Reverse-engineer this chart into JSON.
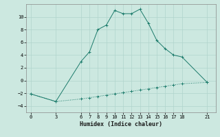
{
  "title": "",
  "xlabel": "Humidex (Indice chaleur)",
  "bg_color": "#cce8e0",
  "line_color": "#1a7a6a",
  "grid_color": "#b0d4cc",
  "x_ticks": [
    0,
    3,
    6,
    7,
    8,
    9,
    10,
    11,
    12,
    13,
    14,
    15,
    16,
    17,
    18,
    21
  ],
  "ylim": [
    -5,
    12
  ],
  "xlim": [
    -0.5,
    22
  ],
  "curve_x": [
    0,
    3,
    6,
    7,
    8,
    9,
    10,
    11,
    12,
    13,
    14,
    15,
    16,
    17,
    18,
    21
  ],
  "curve_y": [
    -2.1,
    -3.3,
    3.0,
    4.5,
    8.0,
    8.7,
    11.0,
    10.5,
    10.5,
    11.2,
    9.0,
    6.3,
    5.0,
    4.0,
    3.7,
    -0.3
  ],
  "line2_x": [
    0,
    3,
    6,
    7,
    8,
    9,
    10,
    11,
    12,
    13,
    14,
    15,
    16,
    17,
    18,
    21
  ],
  "line2_y": [
    -2.1,
    -3.3,
    -2.9,
    -2.7,
    -2.5,
    -2.3,
    -2.1,
    -1.9,
    -1.7,
    -1.5,
    -1.3,
    -1.1,
    -0.9,
    -0.7,
    -0.5,
    -0.3
  ],
  "yticks": [
    -4,
    -2,
    0,
    2,
    4,
    6,
    8,
    10
  ]
}
